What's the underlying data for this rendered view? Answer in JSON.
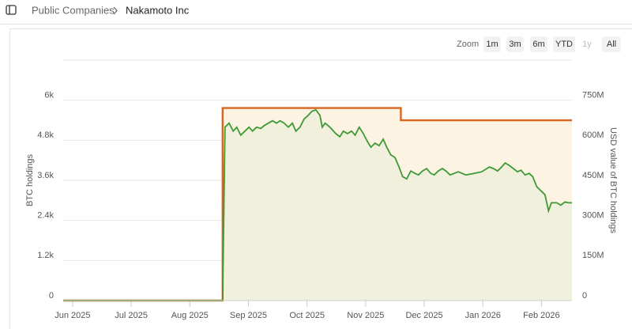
{
  "breadcrumb": [
    "Public Companies",
    "Nakamoto Inc"
  ],
  "zoom": {
    "label": "Zoom",
    "buttons": [
      "1m",
      "3m",
      "6m",
      "YTD",
      "1y",
      "All"
    ]
  },
  "chart_data": {
    "type": "line",
    "xlim": [
      5.84,
      14.52
    ],
    "xticks": [
      {
        "value": 6,
        "label": "Jun 2025"
      },
      {
        "value": 7,
        "label": "Jul 2025"
      },
      {
        "value": 8,
        "label": "Aug 2025"
      },
      {
        "value": 9,
        "label": "Sep 2025"
      },
      {
        "value": 10,
        "label": "Oct 2025"
      },
      {
        "value": 11,
        "label": "Nov 2025"
      },
      {
        "value": 12,
        "label": "Dec 2025"
      },
      {
        "value": 13,
        "label": "Jan 2026"
      },
      {
        "value": 14,
        "label": "Feb 2026"
      }
    ],
    "ylim": [
      0,
      7200
    ],
    "yticks": [
      0,
      {
        "value": 1200,
        "label": "1.2k"
      },
      {
        "value": 2400,
        "label": "2.4k"
      },
      {
        "value": 3600,
        "label": "3.6k"
      },
      {
        "value": 4800,
        "label": "4.8k"
      },
      {
        "value": 6000,
        "label": "6k"
      }
    ],
    "y2lim": [
      0,
      900
    ],
    "y2ticks": [
      0,
      {
        "value": 150,
        "label": "150M"
      },
      {
        "value": 300,
        "label": "300M"
      },
      {
        "value": 450,
        "label": "450M"
      },
      {
        "value": 600,
        "label": "600M"
      },
      {
        "value": 750,
        "label": "750M"
      }
    ],
    "ylabel": "BTC holdings",
    "y2label": "USD value of BTC holdings",
    "grid": true,
    "series": [
      {
        "name": "BTC holdings",
        "color": "#d9651e",
        "fill": "#fdf3e3",
        "x": [
          5.84,
          8.56,
          8.56,
          11.6,
          11.6,
          14.52
        ],
        "values": [
          0,
          0,
          5765,
          5765,
          5398,
          5398
        ]
      },
      {
        "name": "USD value of BTC holdings",
        "color": "#3d9a35",
        "fill": "#eeeedb",
        "axis": "y2",
        "x": [
          5.84,
          8.56,
          8.6,
          8.67,
          8.74,
          8.8,
          8.87,
          8.94,
          9.01,
          9.07,
          9.14,
          9.21,
          9.27,
          9.34,
          9.41,
          9.48,
          9.54,
          9.61,
          9.68,
          9.75,
          9.81,
          9.88,
          9.95,
          10.02,
          10.08,
          10.15,
          10.22,
          10.26,
          10.31,
          10.39,
          10.49,
          10.56,
          10.62,
          10.69,
          10.76,
          10.82,
          10.89,
          10.96,
          11.03,
          11.09,
          11.16,
          11.23,
          11.3,
          11.36,
          11.43,
          11.5,
          11.57,
          11.63,
          11.7,
          11.77,
          11.84,
          11.9,
          11.97,
          12.04,
          12.11,
          12.17,
          12.24,
          12.31,
          12.37,
          12.44,
          12.51,
          12.58,
          12.71,
          12.85,
          12.98,
          13.11,
          13.18,
          13.25,
          13.32,
          13.38,
          13.45,
          13.52,
          13.59,
          13.65,
          13.72,
          13.79,
          13.85,
          13.92,
          13.99,
          14.06,
          14.12,
          14.17,
          14.26,
          14.33,
          14.4,
          14.46,
          14.52
        ],
        "values": [
          0,
          0,
          649,
          664,
          634,
          649,
          619,
          634,
          649,
          634,
          649,
          644,
          655,
          664,
          673,
          664,
          673,
          664,
          649,
          664,
          634,
          649,
          679,
          693,
          708,
          714,
          693,
          649,
          664,
          649,
          625,
          613,
          634,
          625,
          634,
          619,
          649,
          625,
          595,
          574,
          589,
          580,
          604,
          574,
          545,
          536,
          500,
          464,
          455,
          485,
          476,
          470,
          485,
          494,
          476,
          470,
          485,
          494,
          485,
          470,
          476,
          482,
          470,
          476,
          482,
          500,
          494,
          485,
          500,
          515,
          506,
          494,
          482,
          488,
          470,
          476,
          464,
          426,
          411,
          396,
          336,
          366,
          366,
          357,
          369,
          366,
          366
        ]
      }
    ]
  }
}
